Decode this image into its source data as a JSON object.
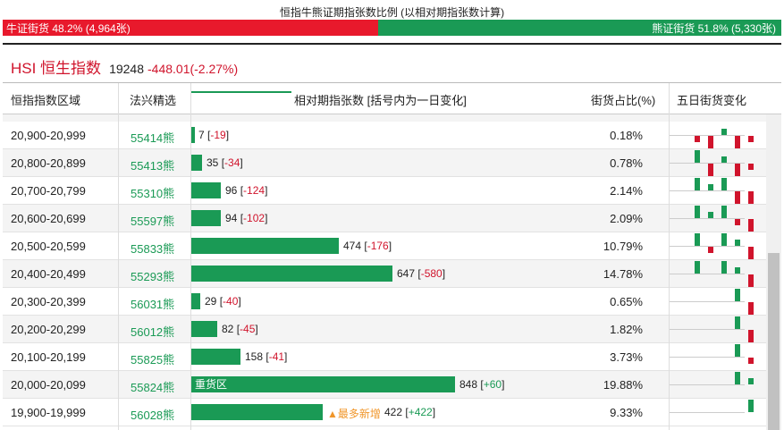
{
  "title": "恒指牛熊证期指张数比例 (以相对期指张数计算)",
  "ratio": {
    "bull_label": "牛证街货 48.2% (4,964张)",
    "bear_label": "熊证街货 51.8% (5,330张)",
    "bull_pct": 48.2,
    "bull_color": "#e8192c",
    "bear_color": "#1a9a55"
  },
  "index": {
    "name": "HSI 恒生指数",
    "value": "19248",
    "change": "-448.01(-2.27%)"
  },
  "headers": {
    "range": "恒指指数区域",
    "warrant": "法兴精选",
    "outstanding": "相对期指张数 [括号内为一日变化]",
    "ratio": "街货占比(%)",
    "fiveday": "五日街货变化"
  },
  "rows": [
    {
      "range": "20,900-20,999",
      "warrant": "55414熊",
      "value": 7,
      "value_text": "7",
      "change_text": "-19",
      "change_sign": "neg",
      "tag": "",
      "new_tag": "",
      "ratio": "0.18%",
      "spark": [
        -1,
        -2,
        1,
        -2,
        -1
      ]
    },
    {
      "range": "20,800-20,899",
      "warrant": "55413熊",
      "value": 35,
      "value_text": "35",
      "change_text": "-34",
      "change_sign": "neg",
      "tag": "",
      "new_tag": "",
      "ratio": "0.78%",
      "spark": [
        2,
        -2,
        1,
        -2,
        -1
      ]
    },
    {
      "range": "20,700-20,799",
      "warrant": "55310熊",
      "value": 96,
      "value_text": "96",
      "change_text": "-124",
      "change_sign": "neg",
      "tag": "",
      "new_tag": "",
      "ratio": "2.14%",
      "spark": [
        2,
        1,
        2,
        -2,
        -2
      ]
    },
    {
      "range": "20,600-20,699",
      "warrant": "55597熊",
      "value": 94,
      "value_text": "94",
      "change_text": "-102",
      "change_sign": "neg",
      "tag": "",
      "new_tag": "",
      "ratio": "2.09%",
      "spark": [
        2,
        1,
        2,
        -1,
        -2
      ]
    },
    {
      "range": "20,500-20,599",
      "warrant": "55833熊",
      "value": 474,
      "value_text": "474",
      "change_text": "-176",
      "change_sign": "neg",
      "tag": "",
      "new_tag": "",
      "ratio": "10.79%",
      "spark": [
        2,
        -1,
        2,
        1,
        -2
      ]
    },
    {
      "range": "20,400-20,499",
      "warrant": "55293熊",
      "value": 647,
      "value_text": "647",
      "change_text": "-580",
      "change_sign": "neg",
      "tag": "",
      "new_tag": "",
      "ratio": "14.78%",
      "spark": [
        2,
        0,
        2,
        1,
        -2
      ]
    },
    {
      "range": "20,300-20,399",
      "warrant": "56031熊",
      "value": 29,
      "value_text": "29",
      "change_text": "-40",
      "change_sign": "neg",
      "tag": "",
      "new_tag": "",
      "ratio": "0.65%",
      "spark": [
        0,
        0,
        0,
        2,
        -2
      ]
    },
    {
      "range": "20,200-20,299",
      "warrant": "56012熊",
      "value": 82,
      "value_text": "82",
      "change_text": "-45",
      "change_sign": "neg",
      "tag": "",
      "new_tag": "",
      "ratio": "1.82%",
      "spark": [
        0,
        0,
        0,
        2,
        -2
      ]
    },
    {
      "range": "20,100-20,199",
      "warrant": "55825熊",
      "value": 158,
      "value_text": "158",
      "change_text": "-41",
      "change_sign": "neg",
      "tag": "",
      "new_tag": "",
      "ratio": "3.73%",
      "spark": [
        0,
        0,
        0,
        2,
        -1
      ]
    },
    {
      "range": "20,000-20,099",
      "warrant": "55824熊",
      "value": 848,
      "value_text": "848",
      "change_text": "+60",
      "change_sign": "pos",
      "tag": "重货区",
      "new_tag": "",
      "ratio": "19.88%",
      "spark": [
        0,
        0,
        0,
        2,
        1
      ]
    },
    {
      "range": "19,900-19,999",
      "warrant": "56028熊",
      "value": 422,
      "value_text": "422",
      "change_text": "+422",
      "change_sign": "pos",
      "tag": "",
      "new_tag": "▲最多新增",
      "ratio": "9.33%",
      "spark": [
        0,
        0,
        0,
        0,
        2
      ]
    }
  ]
}
